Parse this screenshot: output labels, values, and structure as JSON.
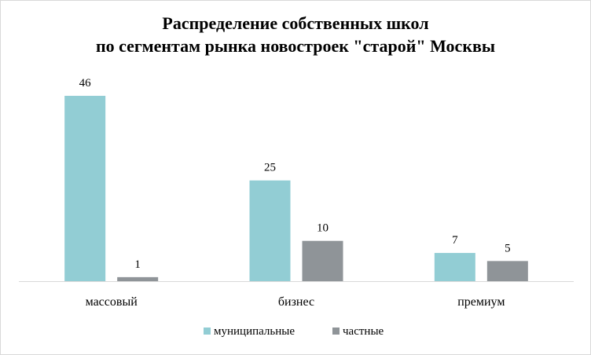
{
  "chart_data": {
    "type": "bar",
    "title_lines": [
      "Распределение собственных школ",
      "по сегментам рынка новостроек \"старой\" Москвы"
    ],
    "categories": [
      "массовый",
      "бизнес",
      "премиум"
    ],
    "series": [
      {
        "name": "муниципальные",
        "values": [
          46,
          25,
          7
        ],
        "color": "#92cdd4"
      },
      {
        "name": "частные",
        "values": [
          1,
          10,
          5
        ],
        "color": "#8f9498"
      }
    ],
    "ylim": [
      0,
      46
    ],
    "legend_position": "bottom",
    "grid": false
  }
}
